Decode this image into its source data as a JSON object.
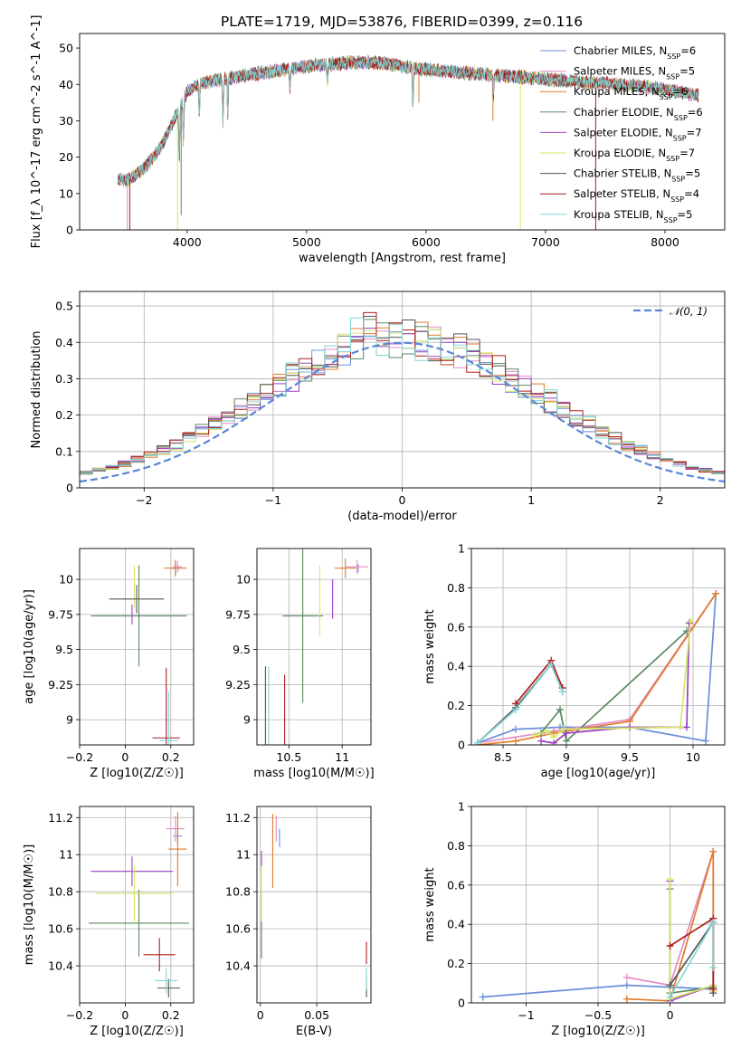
{
  "figure": {
    "title": "PLATE=1719, MJD=53876, FIBERID=0399, z=0.116"
  },
  "models": [
    {
      "name": "Chabrier MILES",
      "color": "#6a8fd8",
      "nssp": 6
    },
    {
      "name": "Salpeter MILES",
      "color": "#e38cc7",
      "nssp": 5
    },
    {
      "name": "Kroupa MILES",
      "color": "#e07b2a",
      "nssp": 6
    },
    {
      "name": "Chabrier ELODIE",
      "color": "#5a8a5f",
      "nssp": 6
    },
    {
      "name": "Salpeter ELODIE",
      "color": "#9b3fc0",
      "nssp": 7
    },
    {
      "name": "Kroupa ELODIE",
      "color": "#d8e66a",
      "nssp": 7
    },
    {
      "name": "Chabrier STELIB",
      "color": "#555555",
      "nssp": 5
    },
    {
      "name": "Salpeter STELIB",
      "color": "#b01c1c",
      "nssp": 4
    },
    {
      "name": "Kroupa STELIB",
      "color": "#82d6d6",
      "nssp": 5
    }
  ],
  "chart_data": [
    {
      "id": "spectrum",
      "type": "line",
      "title": "PLATE=1719, MJD=53876, FIBERID=0399, z=0.116",
      "xlabel": "wavelength [Angstrom, rest frame]",
      "ylabel": "Flux [f_λ 10^-17 erg cm^-2 s^-1 A^-1]",
      "xlim": [
        3100,
        8500
      ],
      "ylim": [
        0,
        54
      ],
      "xticks": [
        4000,
        5000,
        6000,
        7000,
        8000
      ],
      "yticks": [
        0,
        10,
        20,
        30,
        40,
        50
      ],
      "continuum_x": [
        3420,
        3500,
        3600,
        3700,
        3800,
        3900,
        4000,
        4100,
        4200,
        4400,
        4600,
        4800,
        5000,
        5200,
        5400,
        5600,
        5800,
        6000,
        6200,
        6400,
        6600,
        6800,
        7000,
        7200,
        7400,
        7600,
        7800,
        8000,
        8200,
        8280
      ],
      "continuum_y": [
        14,
        13.5,
        16,
        19,
        24,
        31,
        38,
        40,
        41,
        42,
        43,
        44,
        45,
        45.5,
        46,
        46,
        45,
        44,
        43.5,
        43,
        42.5,
        42,
        41.5,
        41,
        40.5,
        40,
        39.5,
        38.5,
        37.5,
        37
      ],
      "absorption_lines": [
        [
          3934,
          15
        ],
        [
          3969,
          12
        ],
        [
          4102,
          8
        ],
        [
          4300,
          12
        ],
        [
          4340,
          10
        ],
        [
          4861,
          6
        ],
        [
          5175,
          5
        ],
        [
          5890,
          10
        ],
        [
          6563,
          6
        ]
      ],
      "series_wavelength_range": [
        3420,
        8280
      ],
      "legend_position": "upper right",
      "grid": false
    },
    {
      "id": "residuals",
      "type": "step",
      "xlabel": "(data-model)/error",
      "ylabel": "Normed distribution",
      "xlim": [
        -2.5,
        2.5
      ],
      "ylim": [
        0,
        0.54
      ],
      "xticks": [
        -2,
        -1,
        0,
        1,
        2
      ],
      "yticks": [
        0.0,
        0.1,
        0.2,
        0.3,
        0.4,
        0.5
      ],
      "bin_width": 0.1,
      "reference_curve": "N(0,1)",
      "legend_label": "𝒩(0, 1)",
      "legend_position": "upper right",
      "grid": true
    },
    {
      "id": "age-vs-Z",
      "type": "errorbar",
      "xlabel": "Z [log10(Z/Z☉)]",
      "ylabel": "age  [log10(age/yr)]",
      "xlim": [
        -0.2,
        0.3
      ],
      "ylim": [
        8.82,
        10.22
      ],
      "xticks": [
        -0.2,
        0.0,
        0.2
      ],
      "yticks": [
        9.0,
        9.25,
        9.5,
        9.75,
        10.0
      ],
      "points": [
        {
          "model": 0,
          "x": 0.22,
          "xerr": 0.02,
          "y": 10.08,
          "yerr": 0.05
        },
        {
          "model": 1,
          "x": 0.23,
          "xerr": 0.02,
          "y": 10.09,
          "yerr": 0.04
        },
        {
          "model": 2,
          "x": 0.22,
          "xerr": 0.05,
          "y": 10.08,
          "yerr": 0.06
        },
        {
          "model": 3,
          "x": 0.06,
          "xerr": 0.21,
          "y": 9.74,
          "yerr": 0.36
        },
        {
          "model": 4,
          "x": 0.03,
          "xerr": 0.0,
          "y": 9.75,
          "yerr": 0.07
        },
        {
          "model": 5,
          "x": 0.04,
          "xerr": 0.0,
          "y": 9.95,
          "yerr": 0.15
        },
        {
          "model": 6,
          "x": 0.05,
          "xerr": 0.12,
          "y": 9.86,
          "yerr": 0.1
        },
        {
          "model": 7,
          "x": 0.18,
          "xerr": 0.06,
          "y": 8.87,
          "yerr": 0.5
        },
        {
          "model": 8,
          "x": 0.19,
          "xerr": 0.04,
          "y": 8.85,
          "yerr": 0.35
        }
      ],
      "grid": true
    },
    {
      "id": "age-vs-mass",
      "type": "errorbar",
      "xlabel": "mass [log10(M/M☉)]",
      "ylabel": "",
      "xlim": [
        10.2,
        11.27
      ],
      "ylim": [
        8.82,
        10.22
      ],
      "xticks": [
        10.5,
        11.0
      ],
      "yticks": [
        9.0,
        9.25,
        9.5,
        9.75,
        10.0
      ],
      "points": [
        {
          "model": 0,
          "x": 11.15,
          "xerr": 0.0,
          "y": 10.08,
          "yerr": 0.03
        },
        {
          "model": 1,
          "x": 11.14,
          "xerr": 0.1,
          "y": 10.09,
          "yerr": 0.05
        },
        {
          "model": 2,
          "x": 11.03,
          "xerr": 0.1,
          "y": 10.08,
          "yerr": 0.07
        },
        {
          "model": 3,
          "x": 10.63,
          "xerr": 0.19,
          "y": 9.74,
          "yerr": 0.62
        },
        {
          "model": 4,
          "x": 10.91,
          "xerr": 0.0,
          "y": 9.86,
          "yerr": 0.14
        },
        {
          "model": 5,
          "x": 10.79,
          "xerr": 0.0,
          "y": 9.85,
          "yerr": 0.25
        },
        {
          "model": 6,
          "x": 10.28,
          "xerr": 0.0,
          "y": 8.85,
          "yerr": 0.53
        },
        {
          "model": 7,
          "x": 10.46,
          "xerr": 0.0,
          "y": 8.87,
          "yerr": 0.45
        },
        {
          "model": 8,
          "x": 10.31,
          "xerr": 0.0,
          "y": 8.85,
          "yerr": 0.53
        }
      ],
      "grid": true
    },
    {
      "id": "mass-weight-vs-age",
      "type": "line",
      "xlabel": "age  [log10(age/yr)]",
      "ylabel": "mass weight",
      "xlim": [
        8.25,
        10.25
      ],
      "ylim": [
        0,
        1.0
      ],
      "xticks": [
        8.5,
        9.0,
        9.5,
        10.0
      ],
      "yticks": [
        0.0,
        0.2,
        0.4,
        0.6,
        0.8,
        1.0
      ],
      "series": [
        {
          "model": 0,
          "x": [
            8.3,
            8.6,
            8.95,
            9.5,
            10.1,
            10.18
          ],
          "y": [
            0.01,
            0.08,
            0.09,
            0.09,
            0.02,
            0.77
          ]
        },
        {
          "model": 1,
          "x": [
            8.3,
            8.9,
            9.5,
            10.18
          ],
          "y": [
            0.01,
            0.07,
            0.13,
            0.77
          ]
        },
        {
          "model": 2,
          "x": [
            8.3,
            8.6,
            8.9,
            9.5,
            10.18
          ],
          "y": [
            0.0,
            0.02,
            0.06,
            0.12,
            0.77
          ]
        },
        {
          "model": 3,
          "x": [
            8.8,
            8.95,
            9.0,
            9.95
          ],
          "y": [
            0.06,
            0.18,
            0.02,
            0.58
          ]
        },
        {
          "model": 4,
          "x": [
            8.8,
            8.9,
            9.0,
            9.5,
            9.95,
            9.97
          ],
          "y": [
            0.02,
            0.01,
            0.06,
            0.09,
            0.09,
            0.62
          ]
        },
        {
          "model": 5,
          "x": [
            8.75,
            8.85,
            8.9,
            8.98,
            9.9,
            9.98
          ],
          "y": [
            0.05,
            0.07,
            0.04,
            0.08,
            0.09,
            0.63
          ]
        },
        {
          "model": 6,
          "x": [
            8.3,
            8.6,
            8.88,
            8.97
          ],
          "y": [
            0.01,
            0.19,
            0.41,
            0.27
          ]
        },
        {
          "model": 7,
          "x": [
            8.6,
            8.88,
            8.97
          ],
          "y": [
            0.21,
            0.43,
            0.29
          ]
        },
        {
          "model": 8,
          "x": [
            8.3,
            8.6,
            8.88,
            8.97
          ],
          "y": [
            0.01,
            0.18,
            0.41,
            0.27
          ]
        }
      ],
      "grid": true
    },
    {
      "id": "mass-vs-Z",
      "type": "errorbar",
      "xlabel": "Z [log10(Z/Z☉)]",
      "ylabel": "mass [log10(M/M☉)]",
      "xlim": [
        -0.2,
        0.3
      ],
      "ylim": [
        10.2,
        11.26
      ],
      "xticks": [
        -0.2,
        0.0,
        0.2
      ],
      "yticks": [
        10.4,
        10.6,
        10.8,
        11.0,
        11.2
      ],
      "points": [
        {
          "model": 0,
          "x": 0.23,
          "xerr": 0.02,
          "y": 11.1,
          "yerr": 0.04
        },
        {
          "model": 1,
          "x": 0.22,
          "xerr": 0.04,
          "y": 11.14,
          "yerr": 0.07
        },
        {
          "model": 2,
          "x": 0.23,
          "xerr": 0.04,
          "y": 11.03,
          "yerr": 0.2
        },
        {
          "model": 3,
          "x": 0.06,
          "xerr": 0.22,
          "y": 10.63,
          "yerr": 0.18
        },
        {
          "model": 4,
          "x": 0.03,
          "xerr": 0.18,
          "y": 10.91,
          "yerr": 0.08
        },
        {
          "model": 5,
          "x": 0.04,
          "xerr": 0.17,
          "y": 10.79,
          "yerr": 0.15
        },
        {
          "model": 6,
          "x": 0.19,
          "xerr": 0.05,
          "y": 10.28,
          "yerr": 0.05
        },
        {
          "model": 7,
          "x": 0.15,
          "xerr": 0.07,
          "y": 10.46,
          "yerr": 0.09
        },
        {
          "model": 8,
          "x": 0.18,
          "xerr": 0.05,
          "y": 10.32,
          "yerr": 0.07
        }
      ],
      "grid": true
    },
    {
      "id": "mass-vs-ebv",
      "type": "errorbar",
      "xlabel": "E(B-V)",
      "ylabel": "",
      "xlim": [
        -0.003,
        0.098
      ],
      "ylim": [
        10.2,
        11.26
      ],
      "xticks": [
        0.0,
        0.05
      ],
      "yticks": [
        10.4,
        10.6,
        10.8,
        11.0,
        11.2
      ],
      "points": [
        {
          "model": 0,
          "x": 0.017,
          "xerr": 0,
          "y": 11.09,
          "yerr": 0.05
        },
        {
          "model": 1,
          "x": 0.014,
          "xerr": 0,
          "y": 11.14,
          "yerr": 0.07
        },
        {
          "model": 2,
          "x": 0.011,
          "xerr": 0,
          "y": 11.02,
          "yerr": 0.2
        },
        {
          "model": 3,
          "x": 0.001,
          "xerr": 0,
          "y": 10.62,
          "yerr": 0.18
        },
        {
          "model": 4,
          "x": 0.001,
          "xerr": 0,
          "y": 10.97,
          "yerr": 0.05
        },
        {
          "model": 5,
          "x": 0.001,
          "xerr": 0,
          "y": 10.79,
          "yerr": 0.15
        },
        {
          "model": 6,
          "x": 0.094,
          "xerr": 0,
          "y": 10.28,
          "yerr": 0.05
        },
        {
          "model": 7,
          "x": 0.094,
          "xerr": 0,
          "y": 10.47,
          "yerr": 0.06
        },
        {
          "model": 8,
          "x": 0.094,
          "xerr": 0,
          "y": 10.33,
          "yerr": 0.06
        }
      ],
      "grid": true
    },
    {
      "id": "mass-weight-vs-Z",
      "type": "line",
      "xlabel": "Z [log10(Z/Z☉)]",
      "ylabel": "mass weight",
      "xlim": [
        -1.38,
        0.38
      ],
      "ylim": [
        0,
        1.0
      ],
      "xticks": [
        -1.0,
        -0.5,
        0.0
      ],
      "yticks": [
        0.0,
        0.2,
        0.4,
        0.6,
        0.8,
        1.0
      ],
      "series": [
        {
          "model": 0,
          "x": [
            -1.3,
            -0.3,
            0.3,
            0.3
          ],
          "y": [
            0.03,
            0.09,
            0.07,
            0.41
          ]
        },
        {
          "model": 1,
          "x": [
            -0.3,
            0.0,
            0.3,
            0.3
          ],
          "y": [
            0.13,
            0.09,
            0.77,
            0.05
          ]
        },
        {
          "model": 2,
          "x": [
            -0.3,
            0.0,
            0.3,
            0.3
          ],
          "y": [
            0.02,
            0.01,
            0.77,
            0.06
          ]
        },
        {
          "model": 3,
          "x": [
            0.0,
            0.0,
            0.3
          ],
          "y": [
            0.58,
            0.05,
            0.08
          ]
        },
        {
          "model": 4,
          "x": [
            0.0,
            0.0,
            0.3
          ],
          "y": [
            0.62,
            0.01,
            0.09
          ]
        },
        {
          "model": 5,
          "x": [
            0.0,
            0.0,
            0.3,
            0.3
          ],
          "y": [
            0.63,
            0.02,
            0.09,
            0.06
          ]
        },
        {
          "model": 6,
          "x": [
            0.0,
            0.3,
            0.3
          ],
          "y": [
            0.09,
            0.41,
            0.05
          ]
        },
        {
          "model": 7,
          "x": [
            0.0,
            0.3,
            0.3
          ],
          "y": [
            0.29,
            0.43,
            0.07
          ]
        },
        {
          "model": 8,
          "x": [
            0.0,
            0.3,
            0.3
          ],
          "y": [
            0.03,
            0.41,
            0.18
          ]
        }
      ],
      "grid": true
    }
  ]
}
